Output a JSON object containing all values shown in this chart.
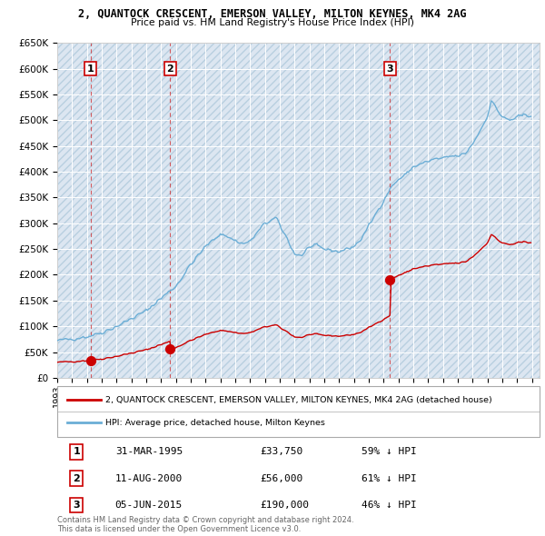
{
  "title": "2, QUANTOCK CRESCENT, EMERSON VALLEY, MILTON KEYNES, MK4 2AG",
  "subtitle": "Price paid vs. HM Land Registry's House Price Index (HPI)",
  "ylabel_ticks": [
    "£0",
    "£50K",
    "£100K",
    "£150K",
    "£200K",
    "£250K",
    "£300K",
    "£350K",
    "£400K",
    "£450K",
    "£500K",
    "£550K",
    "£600K",
    "£650K"
  ],
  "ylim": [
    0,
    650000
  ],
  "xlim_start": 1993.0,
  "xlim_end": 2025.5,
  "sale_years": [
    1995.25,
    2000.62,
    2015.43
  ],
  "sale_prices": [
    33750,
    56000,
    190000
  ],
  "sale_labels": [
    "1",
    "2",
    "3"
  ],
  "legend_line1": "2, QUANTOCK CRESCENT, EMERSON VALLEY, MILTON KEYNES, MK4 2AG (detached house)",
  "legend_line2": "HPI: Average price, detached house, Milton Keynes",
  "table_rows": [
    {
      "num": "1",
      "date": "31-MAR-1995",
      "price": "£33,750",
      "hpi": "59% ↓ HPI"
    },
    {
      "num": "2",
      "date": "11-AUG-2000",
      "price": "£56,000",
      "hpi": "61% ↓ HPI"
    },
    {
      "num": "3",
      "date": "05-JUN-2015",
      "price": "£190,000",
      "hpi": "46% ↓ HPI"
    }
  ],
  "footer": "Contains HM Land Registry data © Crown copyright and database right 2024.\nThis data is licensed under the Open Government Licence v3.0.",
  "hpi_color": "#6baed6",
  "sale_color": "#cc0000",
  "bg_color": "#dce6f1",
  "grid_color": "#ffffff",
  "hatch_color": "#b8cfe0"
}
